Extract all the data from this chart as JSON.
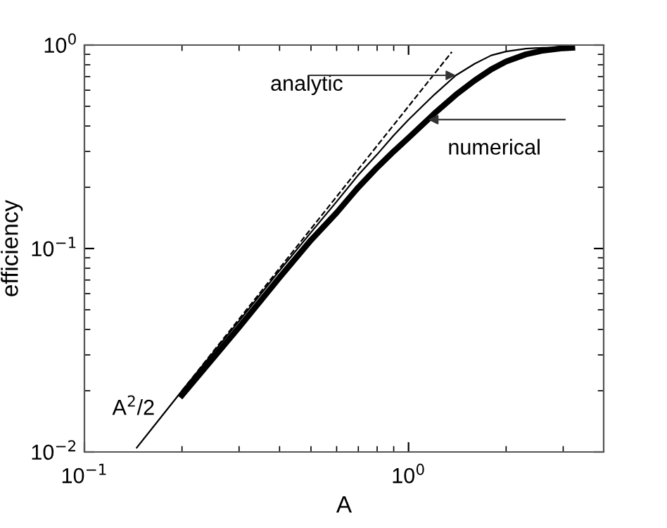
{
  "chart_data": {
    "type": "line",
    "xlabel": "A",
    "ylabel": "efficiency",
    "log": "xy",
    "xlim": [
      0.1,
      4
    ],
    "ylim": [
      0.01,
      1
    ],
    "xticks": [
      {
        "value": 0.1,
        "label": "10$^{−1}$"
      },
      {
        "value": 1,
        "label": "10$^{0}$"
      }
    ],
    "yticks": [
      {
        "value": 0.01,
        "label": "10$^{−2}$"
      },
      {
        "value": 0.1,
        "label": "10$^{−1}$"
      },
      {
        "value": 1,
        "label": "10$^{0}$"
      }
    ],
    "grid": false,
    "legend": false,
    "series": [
      {
        "color": "#000000",
        "line_style": "solid",
        "x": [
          0.145,
          0.2,
          0.3,
          0.4,
          0.5,
          0.6,
          0.7,
          0.8,
          0.9,
          1.0,
          1.2,
          1.4,
          1.6,
          1.8,
          2.0,
          2.3,
          2.6,
          3.2
        ],
        "values": [
          0.0105,
          0.02,
          0.044,
          0.078,
          0.12,
          0.17,
          0.23,
          0.29,
          0.36,
          0.43,
          0.57,
          0.71,
          0.81,
          0.89,
          0.93,
          0.96,
          0.97,
          0.975
        ]
      },
      {
        "color": "#000000",
        "line_style": "solid",
        "x": [
          0.2,
          0.3,
          0.4,
          0.5,
          0.6,
          0.7,
          0.8,
          0.9,
          1.0,
          1.2,
          1.4,
          1.6,
          1.8,
          2.0,
          2.3,
          2.6,
          3.0,
          3.2
        ],
        "values": [
          0.019,
          0.041,
          0.072,
          0.11,
          0.15,
          0.2,
          0.25,
          0.3,
          0.35,
          0.46,
          0.57,
          0.67,
          0.76,
          0.83,
          0.9,
          0.94,
          0.965,
          0.97
        ]
      },
      {
        "color": "#000000",
        "line_style": "dashed",
        "x": [
          0.2,
          1.36
        ],
        "values": [
          0.02,
          0.925
        ]
      }
    ],
    "annotations": [
      {
        "text": "analytic",
        "x": 1.4,
        "y": 0.71
      },
      {
        "text": "numerical",
        "x": 1.15,
        "y": 0.43
      },
      {
        "text": "A$^{2}$/2",
        "x": 0.17,
        "y": 0.0145
      }
    ]
  }
}
